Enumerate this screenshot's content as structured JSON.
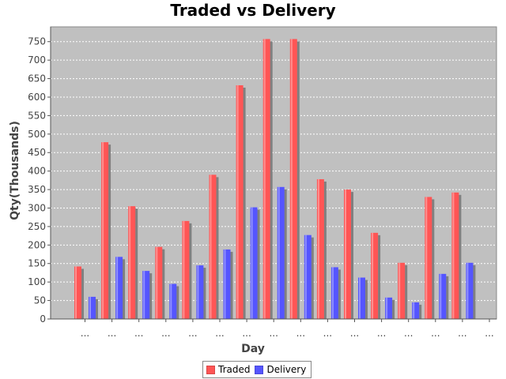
{
  "chart_data": {
    "type": "bar",
    "title": "Traded vs Delivery",
    "xlabel": "Day",
    "ylabel": "Qty(Thousands)",
    "ylim": [
      0,
      790
    ],
    "yticks": [
      0,
      50,
      100,
      150,
      200,
      250,
      300,
      350,
      400,
      450,
      500,
      550,
      600,
      650,
      700,
      750
    ],
    "categories": [
      "...",
      "...",
      "...",
      "...",
      "...",
      "...",
      "...",
      "...",
      "...",
      "...",
      "...",
      "...",
      "...",
      "...",
      "...",
      "..."
    ],
    "series": [
      {
        "name": "Traded",
        "color": "#ff5555",
        "values": [
          142,
          478,
          305,
          195,
          265,
          390,
          632,
          757,
          757,
          378,
          350,
          233,
          152,
          330,
          342,
          0
        ]
      },
      {
        "name": "Delivery",
        "color": "#5555ff",
        "values": [
          60,
          168,
          130,
          95,
          145,
          188,
          302,
          357,
          227,
          140,
          112,
          58,
          45,
          122,
          152,
          0
        ]
      }
    ],
    "grid": true,
    "legend_position": "bottom",
    "plot_background": "#c0c0c0"
  }
}
